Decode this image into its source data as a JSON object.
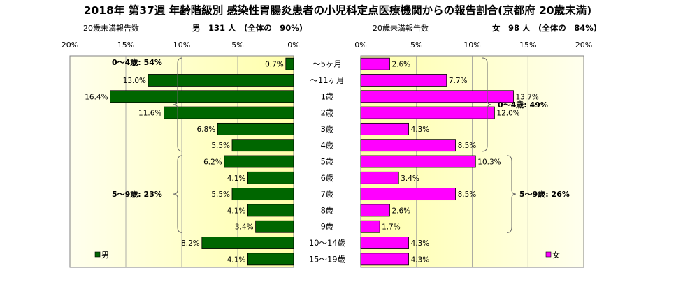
{
  "chart_data": {
    "type": "bar",
    "title": "2018年 第37週 年齢階級別 感染性胃腸炎患者の小児科定点医療機関からの報告割合(京都府 20歳未満)",
    "categories": [
      "～5ヶ月",
      "～11ヶ月",
      "1歳",
      "2歳",
      "3歳",
      "4歳",
      "5歳",
      "6歳",
      "7歳",
      "8歳",
      "9歳",
      "10～14歳",
      "15～19歳"
    ],
    "xlim": [
      0,
      20
    ],
    "ticks": [
      "0%",
      "5%",
      "10%",
      "15%",
      "20%"
    ],
    "grid": "vertical",
    "panels": [
      {
        "side": "left",
        "name": "男",
        "header_label": "20歳未満報告数",
        "header_value": "男　131 人　(全体の　90%)",
        "color": "#006600",
        "values": [
          0.7,
          13.0,
          16.4,
          11.6,
          6.8,
          5.5,
          6.2,
          4.1,
          5.5,
          4.1,
          3.4,
          8.2,
          4.1
        ],
        "labels": [
          "0.7%",
          "13.0%",
          "16.4%",
          "11.6%",
          "6.8%",
          "5.5%",
          "6.2%",
          "4.1%",
          "5.5%",
          "4.1%",
          "3.4%",
          "8.2%",
          "4.1%"
        ],
        "groups": [
          {
            "label": "0～4歳: 54%",
            "from": 0,
            "to": 5
          },
          {
            "label": "5～9歳: 23%",
            "from": 6,
            "to": 10
          }
        ],
        "legend": "男"
      },
      {
        "side": "right",
        "name": "女",
        "header_label": "20歳未満報告数",
        "header_value": "女　98 人　(全体の　84%)",
        "color": "#ff00ff",
        "values": [
          2.6,
          7.7,
          13.7,
          12.0,
          4.3,
          8.5,
          10.3,
          3.4,
          8.5,
          2.6,
          1.7,
          4.3,
          4.3
        ],
        "labels": [
          "2.6%",
          "7.7%",
          "13.7%",
          "12.0%",
          "4.3%",
          "8.5%",
          "10.3%",
          "3.4%",
          "8.5%",
          "2.6%",
          "1.7%",
          "4.3%",
          "4.3%"
        ],
        "groups": [
          {
            "label": "0～4歳: 49%",
            "from": 0,
            "to": 5
          },
          {
            "label": "5～9歳: 26%",
            "from": 6,
            "to": 10
          }
        ],
        "legend": "女"
      }
    ],
    "colors": {
      "plot_bg_light": "#ffffee",
      "plot_bg_dark": "#ffffaa",
      "gridline": "#999999",
      "text": "#000000"
    }
  }
}
